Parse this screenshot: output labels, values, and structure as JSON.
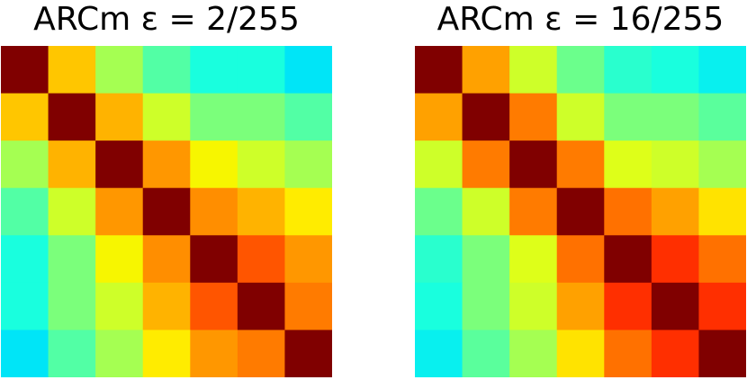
{
  "chart_data": [
    {
      "type": "heatmap",
      "title": "ARCm ε = 2/255",
      "rows": 7,
      "cols": 7,
      "colormap": "jet",
      "vmin": 0,
      "vmax": 1,
      "values": [
        [
          1.0,
          0.7,
          0.55,
          0.45,
          0.38,
          0.38,
          0.35
        ],
        [
          0.7,
          1.0,
          0.72,
          0.6,
          0.5,
          0.5,
          0.45
        ],
        [
          0.55,
          0.72,
          1.0,
          0.75,
          0.65,
          0.6,
          0.55
        ],
        [
          0.45,
          0.6,
          0.75,
          1.0,
          0.76,
          0.72,
          0.66
        ],
        [
          0.38,
          0.5,
          0.65,
          0.76,
          1.0,
          0.82,
          0.75
        ],
        [
          0.38,
          0.5,
          0.6,
          0.72,
          0.82,
          1.0,
          0.78
        ],
        [
          0.35,
          0.45,
          0.55,
          0.66,
          0.75,
          0.78,
          1.0
        ]
      ]
    },
    {
      "type": "heatmap",
      "title": "ARCm ε = 16/255",
      "rows": 7,
      "cols": 7,
      "colormap": "jet",
      "vmin": 0,
      "vmax": 1,
      "values": [
        [
          1.0,
          0.74,
          0.6,
          0.48,
          0.4,
          0.38,
          0.36
        ],
        [
          0.74,
          1.0,
          0.78,
          0.6,
          0.5,
          0.5,
          0.46
        ],
        [
          0.6,
          0.78,
          1.0,
          0.78,
          0.62,
          0.6,
          0.55
        ],
        [
          0.48,
          0.6,
          0.78,
          1.0,
          0.79,
          0.74,
          0.67
        ],
        [
          0.4,
          0.5,
          0.62,
          0.79,
          1.0,
          0.86,
          0.79
        ],
        [
          0.38,
          0.5,
          0.6,
          0.74,
          0.86,
          1.0,
          0.86
        ],
        [
          0.36,
          0.46,
          0.55,
          0.67,
          0.79,
          0.86,
          1.0
        ]
      ]
    }
  ]
}
